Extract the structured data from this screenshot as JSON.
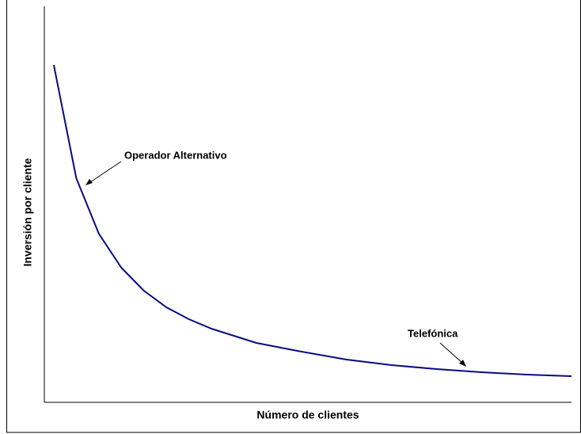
{
  "chart_data": {
    "type": "line",
    "xlabel": "Número de clientes",
    "ylabel": "Inversión por cliente",
    "x": [
      1,
      2,
      3,
      4,
      5,
      6,
      7,
      8,
      9,
      10,
      12,
      14,
      16,
      18,
      20,
      22,
      24
    ],
    "series": [
      {
        "color": "#0a0a80",
        "values": [
          85.2,
          56.6,
          42.6,
          34,
          28.2,
          24,
          21,
          18.6,
          16.8,
          15,
          12.8,
          10.8,
          9.4,
          8.4,
          7.6,
          7,
          6.6
        ]
      }
    ],
    "xlim": [
      0.58,
      24
    ],
    "ylim": [
      0,
      100
    ],
    "annotations": [
      "Operador Alternativo",
      "Telefónica"
    ]
  }
}
